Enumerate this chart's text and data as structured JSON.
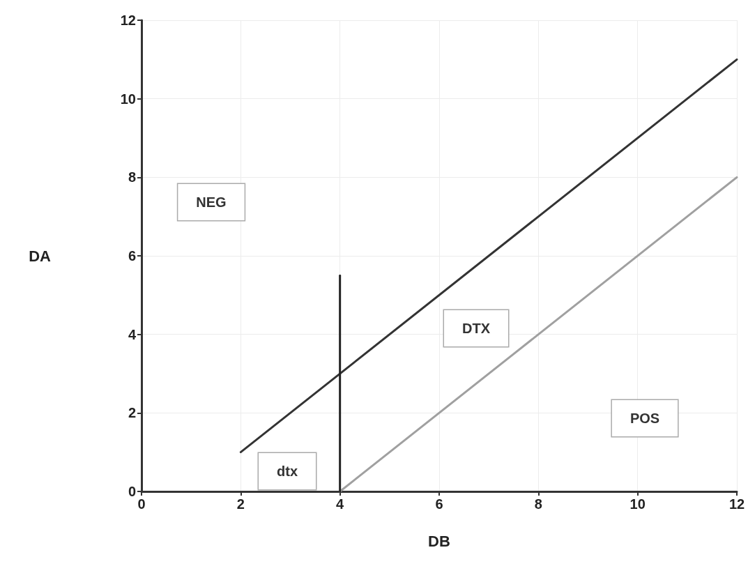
{
  "chart_data": {
    "type": "line",
    "xlabel": "DB",
    "ylabel": "DA",
    "xlim": [
      0,
      12
    ],
    "ylim": [
      0,
      12
    ],
    "xticks": [
      0,
      2,
      4,
      6,
      8,
      10,
      12
    ],
    "yticks": [
      0,
      2,
      4,
      6,
      8,
      10,
      12
    ],
    "grid": true,
    "marker": "none",
    "line_style": "solid",
    "series": [
      {
        "x": [
          2,
          12
        ],
        "values": [
          1,
          11
        ],
        "color": "#333333"
      },
      {
        "x": [
          4,
          12
        ],
        "values": [
          0,
          8
        ],
        "color": "#a0a0a0"
      },
      {
        "x": [
          4,
          4
        ],
        "values": [
          0,
          5.5
        ],
        "color": "#222222"
      }
    ],
    "annotations": [
      "NEG",
      "DTX",
      "POS",
      "dtx"
    ]
  }
}
